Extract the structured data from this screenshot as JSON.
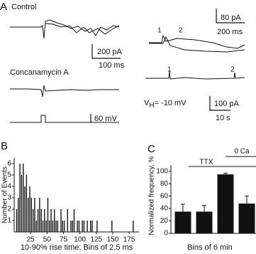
{
  "panel_a": {
    "letter": "A",
    "control": "Control",
    "control_scale_y": "200 pA",
    "control_scale_x": "100 ms",
    "drug": "Concanamycin A",
    "step_scale": "60 mV",
    "zoom_scale_y": "80 pA",
    "zoom_scale_x": "200 ms",
    "zoom_event_1": "1",
    "zoom_event_2": "2",
    "long_event_1": "1",
    "long_event_2": "2",
    "holding": {
      "symbol": "V",
      "subscript": "H",
      "text": "= -10 mV"
    },
    "long_scale_y": "100 pA",
    "long_scale_x": "10 s"
  },
  "chart_data": [
    {
      "type": "histogram",
      "letter": "B",
      "ylabel": "Number of Events",
      "xlabel": "10-90% rise time; Bins of 2.5 ms",
      "color": "#111111",
      "bins": [
        0,
        2.5,
        5,
        7.5,
        10,
        12.5,
        15,
        17.5,
        20,
        22.5,
        25,
        27.5,
        30,
        32.5,
        35,
        37.5,
        40,
        42.5,
        45,
        47.5,
        50,
        52.5,
        55,
        57.5,
        60,
        62.5,
        65,
        67.5,
        70,
        72.5,
        75,
        77.5,
        80,
        82.5,
        85,
        87.5,
        90,
        92.5,
        95,
        97.5,
        100,
        102.5,
        105,
        107.5,
        110,
        112.5,
        115,
        117.5,
        120,
        122.5,
        125,
        127.5,
        130,
        132.5,
        135,
        137.5,
        140,
        142.5,
        145,
        147.5,
        150,
        152.5,
        155,
        157.5,
        160,
        162.5,
        165,
        167.5,
        170,
        172.5,
        175,
        177.5,
        180,
        182.5,
        185,
        187.5,
        190
      ],
      "counts": [
        0,
        2,
        3,
        6,
        5,
        6,
        4,
        5,
        3,
        4,
        3,
        2,
        3,
        1,
        2,
        3,
        2,
        1,
        2,
        1,
        3,
        1,
        2,
        1,
        2,
        1,
        1,
        0,
        2,
        1,
        1,
        0,
        2,
        0,
        1,
        1,
        2,
        0,
        1,
        1,
        0,
        1,
        1,
        0,
        1,
        0,
        1,
        1,
        0,
        0,
        1,
        0,
        0,
        0,
        0,
        0,
        0,
        0,
        0,
        1,
        0,
        0,
        0,
        0,
        0,
        0,
        0,
        0,
        0,
        0,
        0,
        0,
        1,
        0,
        0,
        0
      ],
      "xlim": [
        0,
        190
      ],
      "xticks": [
        25,
        50,
        75,
        100,
        125,
        150,
        175
      ],
      "ylim": [
        0,
        6.5
      ],
      "yticks": [
        1,
        2,
        3,
        4,
        5,
        6
      ]
    },
    {
      "type": "bar",
      "letter": "C",
      "ylabel": "Normalized frequency, %",
      "xlabel": "Bins of 6 min",
      "color": "#111111",
      "categories": [
        null,
        null,
        null,
        null
      ],
      "values": [
        35,
        35,
        95,
        48
      ],
      "errors": [
        12,
        10,
        2,
        12
      ],
      "ylim": [
        0,
        110
      ],
      "yticks": [
        0,
        20,
        40,
        60,
        80,
        100
      ],
      "annotations": [
        {
          "text": "TTX"
        },
        {
          "text": "0 Ca"
        }
      ]
    }
  ]
}
